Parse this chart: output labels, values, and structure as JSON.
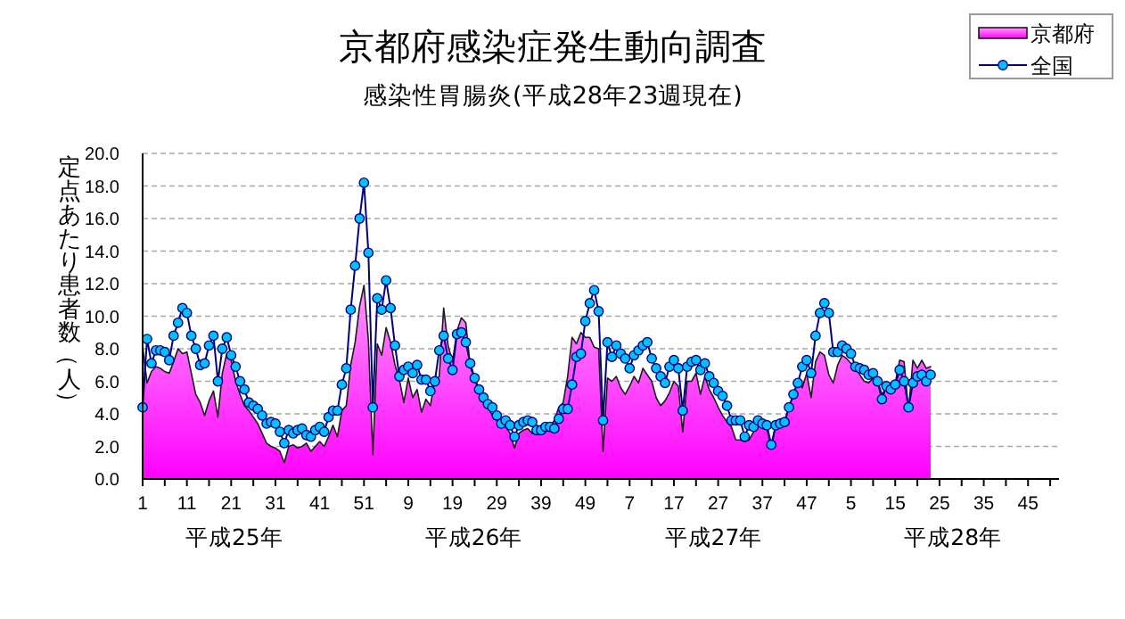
{
  "chart_data": {
    "type": "area",
    "title": "京都府感染症発生動向調査",
    "subtitle": "感染性胃腸炎(平成28年23週現在)",
    "ylabel": "定点あたり患者数（人）",
    "categories": [
      "1",
      null,
      null,
      null,
      null,
      null,
      null,
      null,
      null,
      null,
      "11",
      null,
      null,
      null,
      null,
      null,
      null,
      null,
      null,
      null,
      "21",
      null,
      null,
      null,
      null,
      null,
      null,
      null,
      null,
      null,
      "31",
      null,
      null,
      null,
      null,
      null,
      null,
      null,
      null,
      null,
      "41",
      null,
      null,
      null,
      null,
      null,
      null,
      null,
      null,
      null,
      "51",
      null,
      null,
      null,
      null,
      null,
      null,
      null,
      null,
      null,
      "9",
      null,
      null,
      null,
      null,
      null,
      null,
      null,
      null,
      null,
      "19",
      null,
      null,
      null,
      null,
      null,
      null,
      null,
      null,
      null,
      "29",
      null,
      null,
      null,
      null,
      null,
      null,
      null,
      null,
      null,
      "39",
      null,
      null,
      null,
      null,
      null,
      null,
      null,
      null,
      null,
      "49",
      null,
      null,
      null,
      null,
      null,
      null,
      null,
      null,
      null,
      "7",
      null,
      null,
      null,
      null,
      null,
      null,
      null,
      null,
      null,
      "17",
      null,
      null,
      null,
      null,
      null,
      null,
      null,
      null,
      null,
      "27",
      null,
      null,
      null,
      null,
      null,
      null,
      null,
      null,
      null,
      "37",
      null,
      null,
      null,
      null,
      null,
      null,
      null,
      null,
      null,
      "47",
      null,
      null,
      null,
      null,
      null,
      null,
      null,
      null,
      null,
      "5",
      null,
      null,
      null,
      null,
      null,
      null,
      null,
      null,
      null,
      "15",
      null,
      null,
      null,
      null,
      null,
      null,
      null,
      null,
      null,
      "25",
      null,
      null,
      null,
      null,
      null,
      null,
      null,
      null,
      null,
      "35",
      null,
      null,
      null,
      null,
      null,
      null,
      null,
      null,
      null,
      "45",
      null,
      null,
      null,
      null,
      null,
      null,
      null
    ],
    "series": [
      {
        "name": "京都府",
        "color": "#ff00ff",
        "values": [
          8.2,
          5.9,
          6.6,
          6.9,
          6.8,
          6.6,
          6.5,
          7.2,
          8.0,
          7.7,
          7.8,
          6.5,
          5.2,
          4.7,
          3.9,
          4.8,
          5.4,
          3.8,
          6.5,
          7.7,
          7.3,
          6.0,
          5.2,
          4.5,
          4.2,
          3.8,
          3.4,
          2.8,
          2.2,
          2.0,
          1.9,
          1.7,
          1.0,
          2.0,
          2.1,
          1.9,
          2.0,
          2.2,
          1.7,
          2.0,
          2.3,
          2.0,
          2.6,
          3.3,
          2.6,
          4.2,
          4.5,
          7.0,
          8.4,
          10.6,
          11.9,
          8.5,
          1.5,
          8.3,
          7.6,
          9.3,
          8.4,
          7.0,
          6.1,
          4.7,
          6.2,
          5.0,
          5.5,
          4.1,
          4.9,
          4.5,
          6.1,
          6.3,
          10.5,
          8.2,
          7.2,
          9.1,
          9.9,
          9.6,
          6.9,
          6.1,
          5.4,
          4.8,
          4.4,
          3.9,
          3.6,
          3.3,
          3.2,
          2.8,
          1.9,
          2.8,
          3.0,
          3.1,
          2.8,
          2.8,
          3.0,
          3.0,
          3.2,
          3.6,
          4.4,
          4.7,
          6.3,
          8.7,
          8.3,
          9.0,
          8.7,
          8.7,
          8.1,
          8.0,
          1.7,
          6.2,
          6.0,
          6.3,
          5.6,
          5.2,
          5.7,
          6.3,
          5.9,
          6.8,
          6.4,
          6.0,
          5.0,
          4.5,
          4.8,
          5.3,
          6.0,
          5.7,
          2.9,
          6.0,
          6.0,
          6.5,
          5.2,
          6.3,
          5.5,
          5.0,
          4.4,
          3.9,
          3.5,
          3.2,
          2.4,
          2.4,
          2.3,
          2.4,
          2.9,
          3.4,
          3.1,
          3.1,
          1.9,
          3.3,
          3.7,
          3.5,
          4.4,
          5.2,
          6.1,
          5.6,
          6.5,
          5.0,
          7.2,
          7.8,
          7.6,
          6.4,
          5.9,
          7.0,
          7.6,
          7.4,
          7.1,
          6.9,
          6.4,
          6.0,
          5.9,
          6.2,
          6.0,
          5.2,
          5.6,
          5.9,
          5.9,
          7.3,
          7.2,
          4.2,
          7.3,
          6.8,
          7.3,
          6.8,
          6.9,
          null,
          null,
          null,
          null,
          null,
          null,
          null,
          null,
          null,
          null,
          null,
          null,
          null,
          null,
          null,
          null,
          null,
          null,
          null,
          null,
          null,
          null,
          null,
          null,
          null,
          null,
          null,
          null,
          null
        ]
      },
      {
        "name": "全国",
        "type": "line",
        "color": "#00c0ff",
        "marker": "circle",
        "values": [
          4.4,
          8.6,
          7.1,
          7.9,
          7.9,
          7.8,
          7.3,
          8.8,
          9.6,
          10.5,
          10.2,
          8.8,
          8.0,
          7.0,
          7.1,
          8.2,
          8.8,
          6.0,
          8.0,
          8.7,
          7.6,
          6.9,
          6.0,
          5.5,
          4.7,
          4.5,
          4.3,
          3.9,
          3.4,
          3.5,
          3.4,
          2.9,
          2.2,
          3.0,
          2.8,
          3.0,
          3.1,
          2.7,
          2.6,
          3.0,
          3.2,
          2.9,
          3.8,
          4.2,
          4.2,
          5.8,
          6.8,
          10.4,
          13.1,
          16.0,
          18.2,
          13.9,
          4.4,
          11.1,
          10.4,
          12.2,
          10.5,
          8.2,
          6.3,
          6.7,
          6.9,
          6.5,
          7.0,
          6.1,
          6.1,
          5.4,
          6.0,
          7.9,
          8.8,
          7.4,
          6.7,
          8.9,
          9.0,
          8.4,
          7.1,
          6.2,
          5.5,
          5.0,
          4.6,
          4.4,
          3.9,
          3.4,
          3.6,
          3.3,
          2.6,
          3.3,
          3.5,
          3.6,
          3.5,
          3.0,
          3.0,
          3.2,
          3.2,
          3.1,
          3.7,
          4.3,
          4.3,
          5.8,
          7.5,
          7.7,
          9.7,
          10.8,
          11.6,
          10.3,
          3.6,
          8.4,
          7.5,
          8.2,
          7.7,
          7.4,
          6.8,
          7.6,
          7.9,
          8.2,
          8.4,
          7.4,
          6.8,
          6.3,
          5.9,
          6.9,
          7.3,
          6.8,
          4.2,
          6.9,
          7.2,
          7.3,
          6.7,
          7.1,
          6.3,
          5.9,
          5.4,
          5.1,
          4.5,
          3.6,
          3.6,
          3.6,
          2.6,
          3.3,
          3.2,
          3.6,
          3.4,
          3.3,
          2.1,
          3.3,
          3.4,
          3.5,
          4.4,
          5.2,
          5.9,
          6.9,
          7.3,
          6.5,
          8.8,
          10.2,
          10.8,
          10.2,
          7.8,
          7.8,
          8.2,
          8.0,
          7.7,
          6.9,
          6.8,
          6.7,
          6.4,
          6.5,
          6.0,
          4.9,
          5.7,
          5.5,
          5.8,
          6.7,
          6.0,
          4.4,
          5.9,
          6.3,
          6.4,
          6.0,
          6.4,
          null,
          null,
          null,
          null,
          null,
          null,
          null,
          null,
          null,
          null,
          null,
          null,
          null,
          null,
          null,
          null,
          null,
          null,
          null,
          null,
          null,
          null,
          null,
          null,
          null,
          null,
          null,
          null,
          null
        ]
      }
    ],
    "annotations": [
      "平成25年",
      "平成26年",
      "平成27年",
      "平成28年"
    ],
    "ylim": [
      0,
      20
    ],
    "yticks": [
      {
        "value": 0,
        "label": "0.0"
      },
      {
        "value": 2,
        "label": "2.0"
      },
      {
        "value": 4,
        "label": "4.0"
      },
      {
        "value": 6,
        "label": "6.0"
      },
      {
        "value": 8,
        "label": "8.0"
      },
      {
        "value": 10,
        "label": "10.0"
      },
      {
        "value": 12,
        "label": "12.0"
      },
      {
        "value": 14,
        "label": "14.0"
      },
      {
        "value": 16,
        "label": "16.0"
      },
      {
        "value": 18,
        "label": "18.0"
      },
      {
        "value": 20,
        "label": "20.0"
      }
    ],
    "grid": "y",
    "legend": "top right"
  }
}
